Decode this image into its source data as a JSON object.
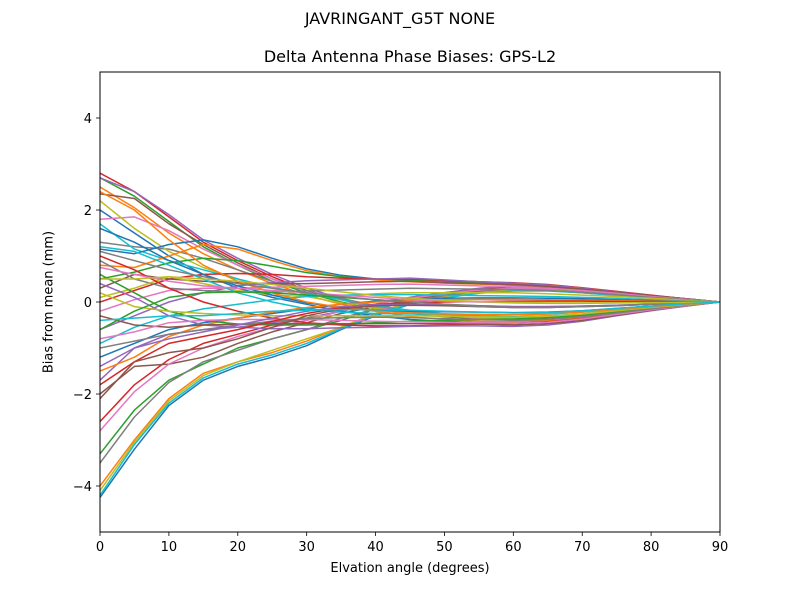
{
  "figure": {
    "suptitle": "JAVRINGANT_G5T  NONE",
    "title": "Delta Antenna Phase Biases: GPS-L2",
    "xlabel": "Elvation angle (degrees)",
    "ylabel": "Bias from mean (mm)"
  },
  "colors": [
    "#1f77b4",
    "#ff7f0e",
    "#2ca02c",
    "#d62728",
    "#9467bd",
    "#8c564b",
    "#e377c2",
    "#7f7f7f",
    "#bcbd22",
    "#17becf"
  ],
  "chart_data": {
    "type": "line",
    "title": "Delta Antenna Phase Biases: GPS-L2",
    "suptitle": "JAVRINGANT_G5T  NONE",
    "xlabel": "Elvation angle (degrees)",
    "ylabel": "Bias from mean (mm)",
    "xlim": [
      0,
      90
    ],
    "ylim": [
      -5,
      5
    ],
    "xticks": [
      0,
      10,
      20,
      30,
      40,
      50,
      60,
      70,
      80,
      90
    ],
    "yticks": [
      -4,
      -2,
      0,
      2,
      4
    ],
    "grid": false,
    "legend": null,
    "x": [
      0,
      5,
      10,
      15,
      20,
      25,
      30,
      35,
      40,
      45,
      50,
      55,
      60,
      65,
      70,
      75,
      80,
      85,
      90
    ],
    "series": [
      {
        "name": "s1",
        "values": [
          -4.25,
          -3.2,
          -2.25,
          -1.7,
          -1.4,
          -1.2,
          -0.95,
          -0.6,
          -0.3,
          -0.05,
          0.1,
          0.2,
          0.25,
          0.25,
          0.2,
          0.15,
          0.1,
          0.05,
          0
        ]
      },
      {
        "name": "s2",
        "values": [
          -4.0,
          -3.0,
          -2.1,
          -1.55,
          -1.3,
          -1.1,
          -0.85,
          -0.55,
          -0.25,
          0.0,
          0.12,
          0.22,
          0.28,
          0.27,
          0.22,
          0.16,
          0.1,
          0.05,
          0
        ]
      },
      {
        "name": "s3",
        "values": [
          -3.3,
          -2.35,
          -1.7,
          -1.35,
          -1.0,
          -0.8,
          -0.6,
          -0.4,
          -0.15,
          0.05,
          0.15,
          0.25,
          0.3,
          0.3,
          0.24,
          0.18,
          0.11,
          0.05,
          0
        ]
      },
      {
        "name": "s4",
        "values": [
          -2.6,
          -1.8,
          -1.25,
          -0.9,
          -0.7,
          -0.5,
          -0.35,
          -0.2,
          -0.05,
          0.1,
          0.2,
          0.28,
          0.33,
          0.32,
          0.26,
          0.19,
          0.12,
          0.06,
          0
        ]
      },
      {
        "name": "s5",
        "values": [
          -1.7,
          -1.0,
          -0.7,
          -0.6,
          -0.55,
          -0.45,
          -0.35,
          -0.2,
          -0.05,
          0.1,
          0.2,
          0.3,
          0.35,
          0.34,
          0.28,
          0.2,
          0.13,
          0.06,
          0
        ]
      },
      {
        "name": "s6",
        "values": [
          -2.0,
          -1.4,
          -1.35,
          -1.2,
          -0.9,
          -0.65,
          -0.45,
          -0.25,
          -0.1,
          0.05,
          0.15,
          0.25,
          0.3,
          0.3,
          0.25,
          0.18,
          0.12,
          0.06,
          0
        ]
      },
      {
        "name": "s7",
        "values": [
          -2.8,
          -1.95,
          -1.35,
          -1.0,
          -0.75,
          -0.55,
          -0.4,
          -0.2,
          -0.05,
          0.08,
          0.18,
          0.26,
          0.3,
          0.3,
          0.24,
          0.18,
          0.11,
          0.05,
          0
        ]
      },
      {
        "name": "s8",
        "values": [
          -3.5,
          -2.5,
          -1.75,
          -1.3,
          -1.05,
          -0.8,
          -0.6,
          -0.35,
          -0.15,
          0.02,
          0.14,
          0.22,
          0.27,
          0.27,
          0.22,
          0.16,
          0.1,
          0.05,
          0
        ]
      },
      {
        "name": "s9",
        "values": [
          -4.1,
          -3.05,
          -2.15,
          -1.6,
          -1.3,
          -1.05,
          -0.8,
          -0.55,
          -0.25,
          -0.02,
          0.1,
          0.2,
          0.26,
          0.26,
          0.21,
          0.15,
          0.1,
          0.05,
          0
        ]
      },
      {
        "name": "s10",
        "values": [
          -4.2,
          -3.1,
          -2.2,
          -1.65,
          -1.35,
          -1.15,
          -0.9,
          -0.58,
          -0.28,
          -0.04,
          0.09,
          0.19,
          0.24,
          0.24,
          0.2,
          0.14,
          0.09,
          0.04,
          0
        ]
      },
      {
        "name": "s11",
        "values": [
          2.0,
          1.5,
          1.0,
          0.6,
          0.3,
          0.1,
          -0.05,
          -0.2,
          -0.3,
          -0.38,
          -0.42,
          -0.45,
          -0.46,
          -0.42,
          -0.35,
          -0.25,
          -0.15,
          -0.07,
          0
        ]
      },
      {
        "name": "s12",
        "values": [
          2.5,
          2.05,
          1.5,
          1.05,
          0.7,
          0.4,
          0.15,
          -0.05,
          -0.2,
          -0.32,
          -0.38,
          -0.42,
          -0.43,
          -0.4,
          -0.33,
          -0.24,
          -0.15,
          -0.07,
          0
        ]
      },
      {
        "name": "s13",
        "values": [
          2.7,
          2.3,
          1.75,
          1.2,
          0.8,
          0.45,
          0.2,
          0.0,
          -0.15,
          -0.25,
          -0.32,
          -0.36,
          -0.38,
          -0.35,
          -0.3,
          -0.22,
          -0.14,
          -0.07,
          0
        ]
      },
      {
        "name": "s14",
        "values": [
          2.8,
          2.4,
          1.85,
          1.3,
          0.9,
          0.55,
          0.25,
          0.05,
          -0.1,
          -0.22,
          -0.3,
          -0.34,
          -0.36,
          -0.34,
          -0.28,
          -0.21,
          -0.13,
          -0.06,
          0
        ]
      },
      {
        "name": "s15",
        "values": [
          2.7,
          2.4,
          1.9,
          1.35,
          0.95,
          0.6,
          0.3,
          0.08,
          -0.08,
          -0.2,
          -0.28,
          -0.33,
          -0.35,
          -0.33,
          -0.28,
          -0.2,
          -0.13,
          -0.06,
          0
        ]
      },
      {
        "name": "s16",
        "values": [
          2.35,
          2.25,
          1.7,
          1.25,
          0.85,
          0.5,
          0.25,
          0.05,
          -0.12,
          -0.24,
          -0.31,
          -0.36,
          -0.38,
          -0.35,
          -0.29,
          -0.21,
          -0.13,
          -0.06,
          0
        ]
      },
      {
        "name": "s17",
        "values": [
          1.8,
          1.85,
          1.55,
          1.15,
          0.8,
          0.5,
          0.25,
          0.05,
          -0.1,
          -0.22,
          -0.3,
          -0.35,
          -0.37,
          -0.34,
          -0.29,
          -0.21,
          -0.13,
          -0.06,
          0
        ]
      },
      {
        "name": "s18",
        "values": [
          1.3,
          1.2,
          1.15,
          0.95,
          0.7,
          0.45,
          0.25,
          0.07,
          -0.08,
          -0.2,
          -0.28,
          -0.33,
          -0.35,
          -0.33,
          -0.28,
          -0.2,
          -0.13,
          -0.06,
          0
        ]
      },
      {
        "name": "s19",
        "values": [
          2.2,
          1.6,
          1.1,
          0.75,
          0.5,
          0.3,
          0.12,
          -0.02,
          -0.14,
          -0.24,
          -0.3,
          -0.34,
          -0.36,
          -0.34,
          -0.28,
          -0.21,
          -0.13,
          -0.06,
          0
        ]
      },
      {
        "name": "s20",
        "values": [
          1.7,
          1.15,
          0.9,
          0.7,
          0.5,
          0.32,
          0.18,
          0.05,
          -0.08,
          -0.18,
          -0.26,
          -0.3,
          -0.32,
          -0.3,
          -0.26,
          -0.19,
          -0.12,
          -0.06,
          0
        ]
      },
      {
        "name": "s21",
        "values": [
          1.15,
          1.05,
          1.25,
          1.35,
          1.2,
          0.95,
          0.72,
          0.58,
          0.5,
          0.45,
          0.42,
          0.4,
          0.38,
          0.35,
          0.3,
          0.22,
          0.14,
          0.07,
          0
        ]
      },
      {
        "name": "s22",
        "values": [
          0.8,
          0.75,
          1.0,
          1.25,
          1.15,
          0.9,
          0.68,
          0.55,
          0.48,
          0.44,
          0.41,
          0.39,
          0.37,
          0.34,
          0.29,
          0.21,
          0.14,
          0.07,
          0
        ]
      },
      {
        "name": "s23",
        "values": [
          0.5,
          0.65,
          0.85,
          0.95,
          0.9,
          0.78,
          0.64,
          0.55,
          0.5,
          0.48,
          0.45,
          0.42,
          0.4,
          0.36,
          0.3,
          0.22,
          0.14,
          0.07,
          0
        ]
      },
      {
        "name": "s24",
        "values": [
          0.0,
          0.25,
          0.5,
          0.6,
          0.62,
          0.6,
          0.55,
          0.52,
          0.5,
          0.5,
          0.47,
          0.44,
          0.42,
          0.38,
          0.31,
          0.23,
          0.15,
          0.07,
          0
        ]
      },
      {
        "name": "s25",
        "values": [
          -0.6,
          -0.3,
          0.0,
          0.2,
          0.35,
          0.42,
          0.46,
          0.48,
          0.5,
          0.52,
          0.48,
          0.44,
          0.41,
          0.37,
          0.3,
          0.22,
          0.14,
          0.07,
          0
        ]
      },
      {
        "name": "s26",
        "values": [
          0.3,
          0.6,
          0.5,
          0.45,
          0.42,
          0.4,
          0.4,
          0.42,
          0.44,
          0.45,
          0.42,
          0.4,
          0.38,
          0.34,
          0.28,
          0.21,
          0.14,
          0.07,
          0
        ]
      },
      {
        "name": "s27",
        "values": [
          -0.2,
          0.05,
          0.25,
          0.3,
          0.3,
          0.32,
          0.34,
          0.36,
          0.38,
          0.39,
          0.37,
          0.35,
          0.33,
          0.3,
          0.25,
          0.19,
          0.12,
          0.06,
          0
        ]
      },
      {
        "name": "s28",
        "values": [
          0.9,
          0.5,
          0.3,
          0.25,
          0.22,
          0.22,
          0.24,
          0.26,
          0.28,
          0.3,
          0.29,
          0.28,
          0.27,
          0.25,
          0.21,
          0.16,
          0.1,
          0.05,
          0
        ]
      },
      {
        "name": "s29",
        "values": [
          0.1,
          0.3,
          0.55,
          0.4,
          0.25,
          0.15,
          0.12,
          0.14,
          0.18,
          0.2,
          0.2,
          0.2,
          0.2,
          0.18,
          0.15,
          0.12,
          0.08,
          0.04,
          0
        ]
      },
      {
        "name": "s30",
        "values": [
          -0.9,
          -0.55,
          -0.3,
          -0.15,
          -0.05,
          0.05,
          0.12,
          0.15,
          0.16,
          0.16,
          0.15,
          0.14,
          0.13,
          0.12,
          0.1,
          0.08,
          0.05,
          0.02,
          0
        ]
      },
      {
        "name": "s31",
        "values": [
          -1.2,
          -0.9,
          -0.6,
          -0.45,
          -0.35,
          -0.25,
          -0.15,
          -0.05,
          0.02,
          0.06,
          0.08,
          0.09,
          0.09,
          0.08,
          0.07,
          0.05,
          0.03,
          0.01,
          0
        ]
      },
      {
        "name": "s32",
        "values": [
          -1.5,
          -1.2,
          -0.75,
          -0.5,
          -0.35,
          -0.22,
          -0.12,
          -0.05,
          0.0,
          0.03,
          0.05,
          0.06,
          0.06,
          0.05,
          0.04,
          0.03,
          0.02,
          0.01,
          0
        ]
      },
      {
        "name": "s33",
        "values": [
          0.6,
          0.2,
          -0.2,
          -0.4,
          -0.48,
          -0.5,
          -0.5,
          -0.48,
          -0.45,
          -0.42,
          -0.4,
          -0.38,
          -0.37,
          -0.34,
          -0.29,
          -0.21,
          -0.13,
          -0.06,
          0
        ]
      },
      {
        "name": "s34",
        "values": [
          1.0,
          0.7,
          0.3,
          0.0,
          -0.2,
          -0.35,
          -0.45,
          -0.5,
          -0.52,
          -0.52,
          -0.5,
          -0.48,
          -0.47,
          -0.43,
          -0.36,
          -0.27,
          -0.17,
          -0.08,
          0
        ]
      },
      {
        "name": "s35",
        "values": [
          0.4,
          0.1,
          -0.3,
          -0.5,
          -0.55,
          -0.58,
          -0.58,
          -0.56,
          -0.55,
          -0.53,
          -0.52,
          -0.52,
          -0.53,
          -0.5,
          -0.42,
          -0.3,
          -0.19,
          -0.09,
          0
        ]
      },
      {
        "name": "s36",
        "values": [
          -0.3,
          -0.5,
          -0.55,
          -0.5,
          -0.48,
          -0.47,
          -0.47,
          -0.47,
          -0.47,
          -0.47,
          -0.47,
          -0.48,
          -0.5,
          -0.47,
          -0.4,
          -0.29,
          -0.18,
          -0.09,
          0
        ]
      },
      {
        "name": "s37",
        "values": [
          -0.8,
          -0.65,
          -0.45,
          -0.4,
          -0.38,
          -0.38,
          -0.38,
          -0.4,
          -0.42,
          -0.43,
          -0.44,
          -0.45,
          -0.46,
          -0.44,
          -0.37,
          -0.27,
          -0.17,
          -0.08,
          0
        ]
      },
      {
        "name": "s38",
        "values": [
          -1.0,
          -0.85,
          -0.7,
          -0.6,
          -0.5,
          -0.42,
          -0.36,
          -0.34,
          -0.33,
          -0.34,
          -0.36,
          -0.38,
          -0.4,
          -0.38,
          -0.32,
          -0.24,
          -0.15,
          -0.07,
          0
        ]
      },
      {
        "name": "s39",
        "values": [
          0.2,
          -0.1,
          -0.2,
          -0.25,
          -0.28,
          -0.3,
          -0.3,
          -0.3,
          -0.3,
          -0.3,
          -0.31,
          -0.32,
          -0.33,
          -0.31,
          -0.26,
          -0.19,
          -0.12,
          -0.06,
          0
        ]
      },
      {
        "name": "s40",
        "values": [
          1.2,
          1.1,
          0.8,
          0.5,
          0.2,
          0.0,
          -0.15,
          -0.22,
          -0.25,
          -0.26,
          -0.26,
          -0.27,
          -0.28,
          -0.26,
          -0.22,
          -0.16,
          -0.1,
          -0.05,
          0
        ]
      },
      {
        "name": "s41",
        "values": [
          1.6,
          1.3,
          0.9,
          0.6,
          0.35,
          0.15,
          -0.02,
          -0.12,
          -0.18,
          -0.2,
          -0.21,
          -0.22,
          -0.23,
          -0.22,
          -0.19,
          -0.14,
          -0.09,
          -0.04,
          0
        ]
      },
      {
        "name": "s42",
        "values": [
          2.4,
          2.0,
          1.35,
          0.8,
          0.45,
          0.2,
          0.0,
          -0.12,
          -0.2,
          -0.24,
          -0.26,
          -0.27,
          -0.28,
          -0.26,
          -0.22,
          -0.16,
          -0.1,
          -0.05,
          0
        ]
      },
      {
        "name": "s43",
        "values": [
          -0.6,
          -0.2,
          0.1,
          0.2,
          0.22,
          0.2,
          0.15,
          0.1,
          0.05,
          0.0,
          -0.05,
          -0.08,
          -0.1,
          -0.1,
          -0.09,
          -0.07,
          -0.05,
          -0.02,
          0
        ]
      },
      {
        "name": "s44",
        "values": [
          -1.8,
          -1.3,
          -0.9,
          -0.75,
          -0.6,
          -0.42,
          -0.25,
          -0.12,
          -0.05,
          -0.02,
          0.0,
          0.01,
          0.02,
          0.02,
          0.02,
          0.01,
          0.01,
          0.0,
          0
        ]
      },
      {
        "name": "s45",
        "values": [
          -1.4,
          -1.0,
          -0.8,
          -0.65,
          -0.5,
          -0.35,
          -0.2,
          -0.1,
          -0.06,
          -0.05,
          -0.06,
          -0.08,
          -0.1,
          -0.1,
          -0.09,
          -0.07,
          -0.05,
          -0.02,
          0
        ]
      },
      {
        "name": "s46",
        "values": [
          -2.1,
          -1.3,
          -1.1,
          -1.0,
          -0.8,
          -0.55,
          -0.3,
          -0.15,
          -0.08,
          -0.07,
          -0.08,
          -0.1,
          -0.12,
          -0.12,
          -0.1,
          -0.08,
          -0.05,
          -0.02,
          0
        ]
      },
      {
        "name": "s47",
        "values": [
          0.75,
          0.6,
          0.45,
          0.35,
          0.3,
          0.25,
          0.2,
          0.15,
          0.1,
          0.05,
          0.02,
          0.0,
          -0.02,
          -0.03,
          -0.03,
          -0.02,
          -0.02,
          -0.01,
          0
        ]
      },
      {
        "name": "s48",
        "values": [
          1.1,
          0.9,
          0.7,
          0.55,
          0.4,
          0.3,
          0.2,
          0.12,
          0.05,
          0.0,
          -0.05,
          -0.1,
          -0.12,
          -0.12,
          -0.1,
          -0.08,
          -0.05,
          -0.02,
          0
        ]
      },
      {
        "name": "s49",
        "values": [
          0.5,
          0.5,
          0.55,
          0.5,
          0.45,
          0.38,
          0.3,
          0.22,
          0.14,
          0.08,
          0.04,
          0.01,
          -0.01,
          -0.02,
          -0.02,
          -0.02,
          -0.01,
          -0.01,
          0
        ]
      },
      {
        "name": "s50",
        "values": [
          -0.4,
          -0.35,
          -0.3,
          -0.3,
          -0.25,
          -0.2,
          -0.18,
          -0.17,
          -0.17,
          -0.18,
          -0.2,
          -0.22,
          -0.24,
          -0.23,
          -0.19,
          -0.14,
          -0.09,
          -0.04,
          0
        ]
      }
    ]
  }
}
